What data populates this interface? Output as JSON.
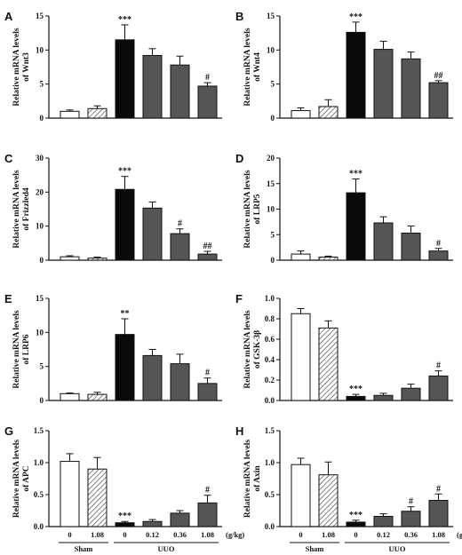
{
  "bar_styles": [
    {
      "fill": "#ffffff",
      "hatch": false
    },
    {
      "fill": "#ffffff",
      "hatch": true
    },
    {
      "fill": "#0a0a0a",
      "hatch": false
    },
    {
      "fill": "#555555",
      "hatch": false
    },
    {
      "fill": "#555555",
      "hatch": false
    },
    {
      "fill": "#555555",
      "hatch": false
    }
  ],
  "x_axis": {
    "doses": [
      "0",
      "1.08",
      "0",
      "0.12",
      "0.36",
      "1.08"
    ],
    "unit": "(g/kg)",
    "groups": [
      {
        "label": "Sham",
        "bars": [
          0,
          1
        ]
      },
      {
        "label": "UUO",
        "bars": [
          2,
          5
        ]
      }
    ]
  },
  "chart_data": [
    {
      "type": "bar",
      "letter": "A",
      "ylabel": [
        "Relative mRNA levels",
        "of Wnt3"
      ],
      "ylim": [
        0,
        15
      ],
      "yticks": [
        "0",
        "5",
        "10",
        "15"
      ],
      "values": [
        1.0,
        1.4,
        11.5,
        9.2,
        7.8,
        4.7
      ],
      "errors": [
        0.2,
        0.4,
        2.2,
        1.0,
        1.3,
        0.5
      ],
      "sig": [
        "",
        "",
        "***",
        "",
        "",
        "#"
      ]
    },
    {
      "type": "bar",
      "letter": "B",
      "ylabel": [
        "Relative mRNA levels",
        "of Wnt4"
      ],
      "ylim": [
        0,
        15
      ],
      "yticks": [
        "0",
        "5",
        "10",
        "15"
      ],
      "values": [
        1.1,
        1.7,
        12.6,
        10.1,
        8.7,
        5.2
      ],
      "errors": [
        0.4,
        1.0,
        1.5,
        1.2,
        1.0,
        0.3
      ],
      "sig": [
        "",
        "",
        "***",
        "",
        "",
        "##"
      ]
    },
    {
      "type": "bar",
      "letter": "C",
      "ylabel": [
        "Relative mRNA levels",
        "of Frizzled4"
      ],
      "ylim": [
        0,
        30
      ],
      "yticks": [
        "0",
        "10",
        "20",
        "30"
      ],
      "values": [
        1.0,
        0.6,
        20.8,
        15.3,
        7.8,
        1.8
      ],
      "errors": [
        0.3,
        0.3,
        3.8,
        1.8,
        1.4,
        0.8
      ],
      "sig": [
        "",
        "",
        "***",
        "",
        "#",
        "##"
      ]
    },
    {
      "type": "bar",
      "letter": "D",
      "ylabel": [
        "Relative mRNA levels",
        "of LRP5"
      ],
      "ylim": [
        0,
        20
      ],
      "yticks": [
        "0",
        "5",
        "10",
        "15",
        "20"
      ],
      "values": [
        1.2,
        0.6,
        13.2,
        7.3,
        5.3,
        1.8
      ],
      "errors": [
        0.6,
        0.2,
        2.7,
        1.2,
        1.4,
        0.5
      ],
      "sig": [
        "",
        "",
        "***",
        "",
        "",
        "#"
      ]
    },
    {
      "type": "bar",
      "letter": "E",
      "ylabel": [
        "Relative mRNA levels",
        "of LRP6"
      ],
      "ylim": [
        0,
        15
      ],
      "yticks": [
        "0",
        "5",
        "10",
        "15"
      ],
      "values": [
        1.0,
        0.9,
        9.7,
        6.6,
        5.4,
        2.5
      ],
      "errors": [
        0.1,
        0.3,
        2.3,
        0.9,
        1.4,
        0.8
      ],
      "sig": [
        "",
        "",
        "**",
        "",
        "",
        "#"
      ]
    },
    {
      "type": "bar",
      "letter": "F",
      "ylabel": [
        "Relative mRNA levels",
        "of GSK-3β"
      ],
      "ylim": [
        0,
        1.0
      ],
      "yticks": [
        "0.0",
        "0.2",
        "0.4",
        "0.6",
        "0.8",
        "1.0"
      ],
      "values": [
        0.85,
        0.71,
        0.04,
        0.05,
        0.12,
        0.24
      ],
      "errors": [
        0.05,
        0.07,
        0.02,
        0.02,
        0.04,
        0.05
      ],
      "sig": [
        "",
        "",
        "***",
        "",
        "",
        "#"
      ]
    },
    {
      "type": "bar",
      "letter": "G",
      "ylabel": [
        "Relative mRNA levels",
        "of APC"
      ],
      "ylim": [
        0,
        1.5
      ],
      "yticks": [
        "0.0",
        "0.5",
        "1.0",
        "1.5"
      ],
      "values": [
        1.02,
        0.9,
        0.06,
        0.08,
        0.21,
        0.37
      ],
      "errors": [
        0.12,
        0.18,
        0.02,
        0.03,
        0.04,
        0.12
      ],
      "sig": [
        "",
        "",
        "***",
        "",
        "",
        "#"
      ]
    },
    {
      "type": "bar",
      "letter": "H",
      "ylabel": [
        "Relative mRNA levels",
        "of Axin"
      ],
      "ylim": [
        0,
        1.5
      ],
      "yticks": [
        "0.0",
        "0.5",
        "1.0",
        "1.5"
      ],
      "values": [
        0.97,
        0.81,
        0.07,
        0.16,
        0.24,
        0.41
      ],
      "errors": [
        0.1,
        0.2,
        0.03,
        0.04,
        0.07,
        0.1
      ],
      "sig": [
        "",
        "",
        "***",
        "",
        "#",
        "#"
      ]
    }
  ]
}
